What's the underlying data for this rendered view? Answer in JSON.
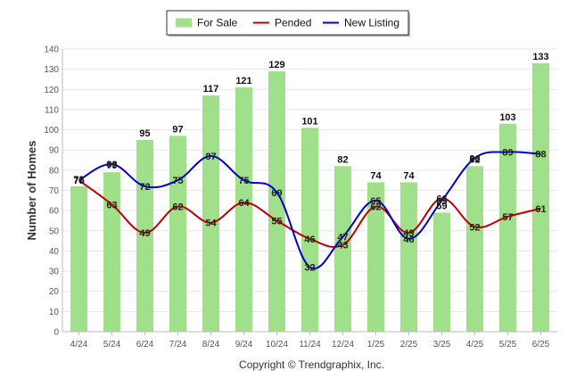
{
  "chart_data": {
    "type": "bar",
    "categories": [
      "4/24",
      "5/24",
      "6/24",
      "7/24",
      "8/24",
      "9/24",
      "10/24",
      "11/24",
      "12/24",
      "1/25",
      "2/25",
      "3/25",
      "4/25",
      "5/25",
      "6/25"
    ],
    "series": [
      {
        "name": "For Sale",
        "kind": "bar",
        "color": "#a1e08a",
        "values": [
          72,
          79,
          95,
          97,
          117,
          121,
          129,
          101,
          82,
          74,
          74,
          59,
          82,
          103,
          133
        ],
        "labels": [
          "72",
          "79",
          "95",
          "97",
          "117",
          "121",
          "129",
          "101",
          "82",
          "74",
          "74",
          "59",
          "82",
          "103",
          "133"
        ]
      },
      {
        "name": "Pended",
        "kind": "line",
        "color": "#c00000",
        "values": [
          75,
          63,
          49,
          62,
          54,
          64,
          55,
          46,
          43,
          62,
          49,
          66,
          52,
          57,
          61
        ],
        "labels": [
          "75",
          "63",
          "49",
          "62",
          "54",
          "64",
          "55",
          "46",
          "43",
          "62",
          "49",
          "66",
          "52",
          "57",
          "61"
        ]
      },
      {
        "name": "New Listing",
        "kind": "line",
        "color": "#0000cc",
        "values": [
          75,
          83,
          72,
          75,
          87,
          75,
          69,
          32,
          47,
          65,
          46,
          65,
          86,
          89,
          88
        ],
        "labels": [
          "75",
          "83",
          "72",
          "75",
          "87",
          "75",
          "69",
          "32",
          "47",
          "65",
          "46",
          "65",
          "86",
          "89",
          "88"
        ]
      }
    ],
    "ylabel": "Number of Homes",
    "ylim": [
      0,
      140
    ],
    "yticks": [
      "0",
      "10",
      "20",
      "30",
      "40",
      "50",
      "60",
      "70",
      "80",
      "90",
      "100",
      "110",
      "120",
      "130",
      "140"
    ],
    "grid": true,
    "legend": "top-center"
  },
  "footer": "Copyright © Trendgraphix, Inc."
}
